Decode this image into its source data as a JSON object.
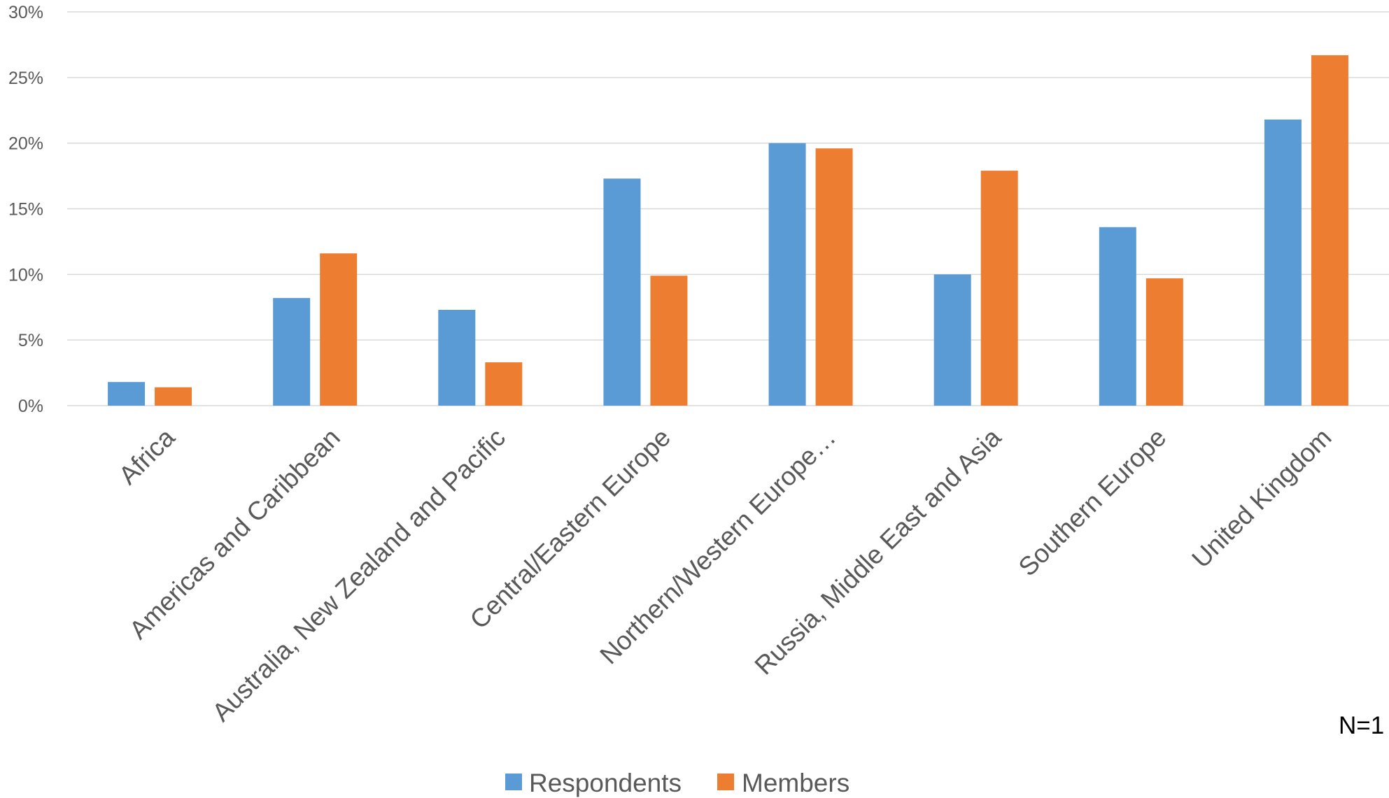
{
  "chart_data": {
    "type": "bar",
    "categories": [
      "Africa",
      "Americas and Caribbean",
      "Australia, New Zealand and Pacific",
      "Central/Eastern Europe",
      "Northern/Western Europe…",
      "Russia, Middle East and Asia",
      "Southern Europe",
      "United Kingdom"
    ],
    "series": [
      {
        "name": "Respondents",
        "values": [
          1.8,
          8.2,
          7.3,
          17.3,
          20.0,
          10.0,
          13.6,
          21.8
        ]
      },
      {
        "name": "Members",
        "values": [
          1.4,
          11.6,
          3.3,
          9.9,
          19.6,
          17.9,
          9.7,
          26.7
        ]
      }
    ],
    "y_ticks": [
      "0%",
      "5%",
      "10%",
      "15%",
      "20%",
      "25%",
      "30%"
    ],
    "y_tick_values": [
      0,
      5,
      10,
      15,
      20,
      25,
      30
    ],
    "ylim": [
      0,
      30
    ],
    "grid": true,
    "legend_position": "bottom",
    "note": "N=1",
    "colors": {
      "Respondents": "#5b9bd5",
      "Members": "#ed7d31",
      "grid": "#d9d9d9",
      "text": "#595959"
    }
  }
}
